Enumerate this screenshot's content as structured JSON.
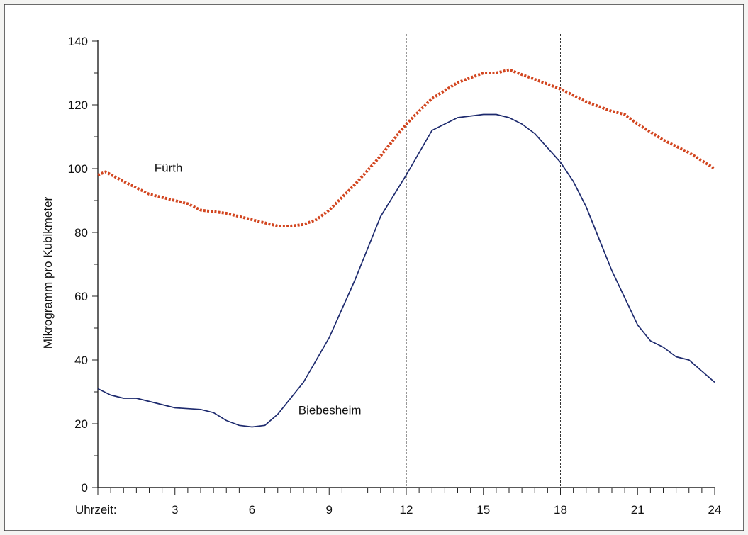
{
  "chart_data": {
    "type": "line",
    "ylabel": "Mikrogramm pro Kubikmeter",
    "xlabel": "Uhrzeit:",
    "ylim": [
      0,
      140
    ],
    "xlim": [
      0,
      24
    ],
    "y_ticks": [
      "0",
      "20",
      "40",
      "60",
      "80",
      "100",
      "120",
      "140"
    ],
    "x_ticks": [
      "3",
      "6",
      "9",
      "12",
      "15",
      "18",
      "21",
      "24"
    ],
    "x_tick_values": [
      3,
      6,
      9,
      12,
      15,
      18,
      21,
      24
    ],
    "y_tick_values": [
      0,
      20,
      40,
      60,
      80,
      100,
      120,
      140
    ],
    "reference_lines_x": [
      6,
      12,
      18
    ],
    "series": [
      {
        "name": "Fürth",
        "color": "#d2451f",
        "x": [
          0,
          0.3,
          1,
          2,
          3,
          3.5,
          4,
          5,
          6,
          6.5,
          7,
          7.5,
          8,
          8.5,
          9,
          10,
          11,
          12,
          13,
          14,
          15,
          15.5,
          16,
          17,
          18,
          19,
          20,
          20.5,
          21,
          22,
          23,
          24
        ],
        "y": [
          98,
          99,
          96,
          92,
          90,
          89,
          87,
          86,
          84,
          83,
          82,
          82,
          82.5,
          84,
          87,
          95,
          104,
          114,
          122,
          127,
          130,
          130,
          131,
          128,
          125,
          121,
          118,
          117,
          114,
          109,
          105,
          100
        ]
      },
      {
        "name": "Biebesheim",
        "color": "#1d2a6e",
        "x": [
          0,
          0.5,
          1,
          1.5,
          2,
          3,
          4,
          4.5,
          5,
          5.5,
          6,
          6.5,
          7,
          8,
          9,
          10,
          11,
          12,
          13,
          14,
          15,
          15.5,
          16,
          16.5,
          17,
          18,
          18.5,
          19,
          20,
          21,
          21.5,
          22,
          22.5,
          23,
          24
        ],
        "y": [
          31,
          29,
          28,
          28,
          27,
          25,
          24.5,
          23.5,
          21,
          19.5,
          19,
          19.5,
          23,
          33,
          47,
          65,
          85,
          98,
          112,
          116,
          117,
          117,
          116,
          114,
          111,
          102,
          96,
          88,
          68,
          51,
          46,
          44,
          41,
          40,
          33
        ]
      }
    ],
    "annotations": [
      {
        "text": "Fürth",
        "x": 2.2,
        "y": 99,
        "series": "Fürth"
      },
      {
        "text": "Biebesheim",
        "x": 7.8,
        "y": 23,
        "series": "Biebesheim"
      }
    ],
    "grid": false
  }
}
